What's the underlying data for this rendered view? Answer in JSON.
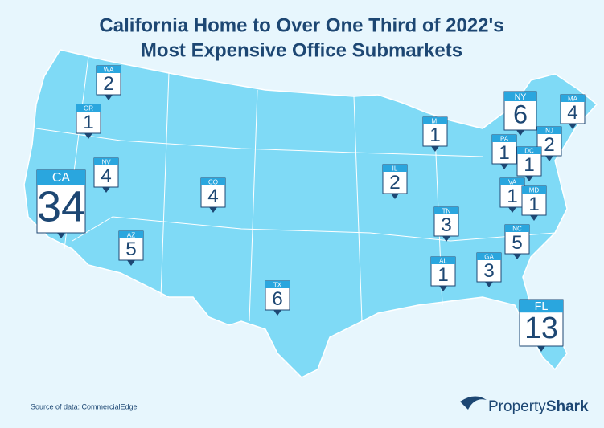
{
  "title_lines": [
    "California Home to Over One Third of 2022's",
    "Most Expensive Office Submarkets"
  ],
  "markers": [
    {
      "state": "WA",
      "value": 2
    },
    {
      "state": "OR",
      "value": 1
    },
    {
      "state": "NV",
      "value": 4
    },
    {
      "state": "CA",
      "value": 34
    },
    {
      "state": "CO",
      "value": 4
    },
    {
      "state": "AZ",
      "value": 5
    },
    {
      "state": "TX",
      "value": 6
    },
    {
      "state": "IL",
      "value": 2
    },
    {
      "state": "MI",
      "value": 1
    },
    {
      "state": "TN",
      "value": 3
    },
    {
      "state": "AL",
      "value": 1
    },
    {
      "state": "GA",
      "value": 3
    },
    {
      "state": "NY",
      "value": 6
    },
    {
      "state": "MA",
      "value": 4
    },
    {
      "state": "NJ",
      "value": 2
    },
    {
      "state": "PA",
      "value": 1
    },
    {
      "state": "DC",
      "value": 1
    },
    {
      "state": "VA",
      "value": 1
    },
    {
      "state": "MD",
      "value": 1
    },
    {
      "state": "NC",
      "value": 5
    },
    {
      "state": "FL",
      "value": 13
    }
  ],
  "source": "Source of data: CommercialEdge",
  "brand": {
    "first": "Property",
    "second": "Shark"
  }
}
